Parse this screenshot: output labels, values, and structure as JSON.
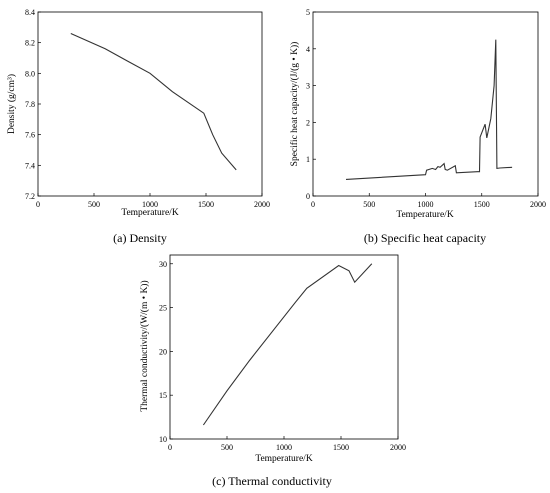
{
  "chart_data": [
    {
      "type": "line",
      "caption": "(a) Density",
      "xlabel": "Temperature/K",
      "ylabel": "Density (g/cm³)",
      "xlim": [
        0,
        2000
      ],
      "ylim": [
        7.2,
        8.4
      ],
      "xticks": [
        "0",
        "500",
        "1000",
        "1500",
        "2000"
      ],
      "yticks": [
        "7.2",
        "7.4",
        "7.6",
        "7.8",
        "8.0",
        "8.2",
        "8.4"
      ],
      "series": [
        {
          "x": [
            293,
            600,
            800,
            1000,
            1200,
            1480,
            1560,
            1640,
            1770
          ],
          "y": [
            8.26,
            8.16,
            8.08,
            8.0,
            7.88,
            7.74,
            7.6,
            7.48,
            7.37
          ]
        }
      ]
    },
    {
      "type": "line",
      "caption": "(b) Specific heat capacity",
      "xlabel": "Temperature/K",
      "ylabel": "Specific heat capacity/(J/(g • K))",
      "xlim": [
        0,
        2000
      ],
      "ylim": [
        0,
        5
      ],
      "xticks": [
        "0",
        "500",
        "1000",
        "1500",
        "2000"
      ],
      "yticks": [
        "0",
        "1",
        "2",
        "3",
        "4",
        "5"
      ],
      "series": [
        {
          "x": [
            293,
            1000,
            1010,
            1060,
            1090,
            1110,
            1130,
            1165,
            1175,
            1195,
            1265,
            1275,
            1460,
            1480,
            1485,
            1530,
            1545,
            1580,
            1610,
            1625,
            1635,
            1660,
            1770
          ],
          "y": [
            0.45,
            0.58,
            0.7,
            0.75,
            0.72,
            0.8,
            0.78,
            0.88,
            0.72,
            0.7,
            0.82,
            0.63,
            0.66,
            0.66,
            1.6,
            1.95,
            1.58,
            2.1,
            3.0,
            4.25,
            0.75,
            0.76,
            0.78
          ]
        }
      ]
    },
    {
      "type": "line",
      "caption": "(c) Thermal conductivity",
      "xlabel": "Temperature/K",
      "ylabel": "Thermal conductivity/(W/(m • K))",
      "xlim": [
        0,
        2000
      ],
      "ylim": [
        10,
        31
      ],
      "xticks": [
        "0",
        "500",
        "1000",
        "1500",
        "2000"
      ],
      "yticks": [
        "10",
        "15",
        "20",
        "25",
        "30"
      ],
      "series": [
        {
          "x": [
            293,
            500,
            700,
            900,
            1100,
            1200,
            1480,
            1570,
            1620,
            1770
          ],
          "y": [
            11.6,
            15.5,
            19.0,
            22.3,
            25.6,
            27.2,
            29.8,
            29.2,
            27.9,
            30.0
          ]
        }
      ]
    }
  ]
}
